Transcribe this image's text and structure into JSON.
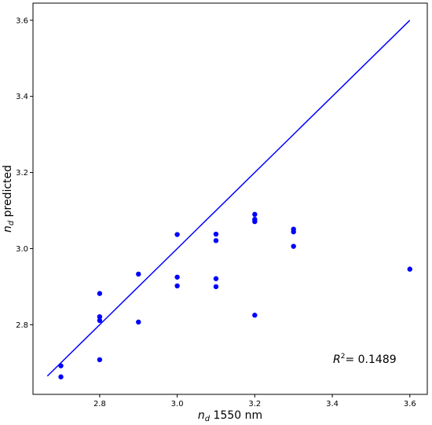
{
  "chart_data": {
    "type": "scatter",
    "xlabel": "n_d 1550 nm",
    "ylabel": "n_d predicted",
    "xlim": [
      2.628,
      3.645
    ],
    "ylim": [
      2.617,
      3.645
    ],
    "x_ticks": [
      2.8,
      3.0,
      3.2,
      3.4,
      3.6
    ],
    "y_ticks": [
      2.8,
      3.0,
      3.2,
      3.4,
      3.6
    ],
    "grid": false,
    "points": [
      {
        "x": 2.7,
        "y": 2.692
      },
      {
        "x": 2.7,
        "y": 2.663
      },
      {
        "x": 2.8,
        "y": 2.882
      },
      {
        "x": 2.8,
        "y": 2.821
      },
      {
        "x": 2.8,
        "y": 2.811
      },
      {
        "x": 2.8,
        "y": 2.708
      },
      {
        "x": 2.9,
        "y": 2.933
      },
      {
        "x": 2.9,
        "y": 2.807
      },
      {
        "x": 3.0,
        "y": 3.037
      },
      {
        "x": 3.0,
        "y": 2.925
      },
      {
        "x": 3.0,
        "y": 2.902
      },
      {
        "x": 3.1,
        "y": 3.038
      },
      {
        "x": 3.1,
        "y": 3.021
      },
      {
        "x": 3.1,
        "y": 2.921
      },
      {
        "x": 3.1,
        "y": 2.9
      },
      {
        "x": 3.2,
        "y": 3.09
      },
      {
        "x": 3.2,
        "y": 3.077
      },
      {
        "x": 3.2,
        "y": 3.071
      },
      {
        "x": 3.2,
        "y": 2.825
      },
      {
        "x": 3.3,
        "y": 3.051
      },
      {
        "x": 3.3,
        "y": 3.044
      },
      {
        "x": 3.3,
        "y": 3.006
      },
      {
        "x": 3.6,
        "y": 2.946
      }
    ],
    "reference_line": {
      "x": [
        2.665,
        3.6
      ],
      "y": [
        2.665,
        3.6
      ]
    },
    "marker_color": "#0000ff",
    "line_color": "#0000ff",
    "annotation": {
      "prefix": "R",
      "superscript": "2",
      "text": "= 0.1489"
    }
  }
}
